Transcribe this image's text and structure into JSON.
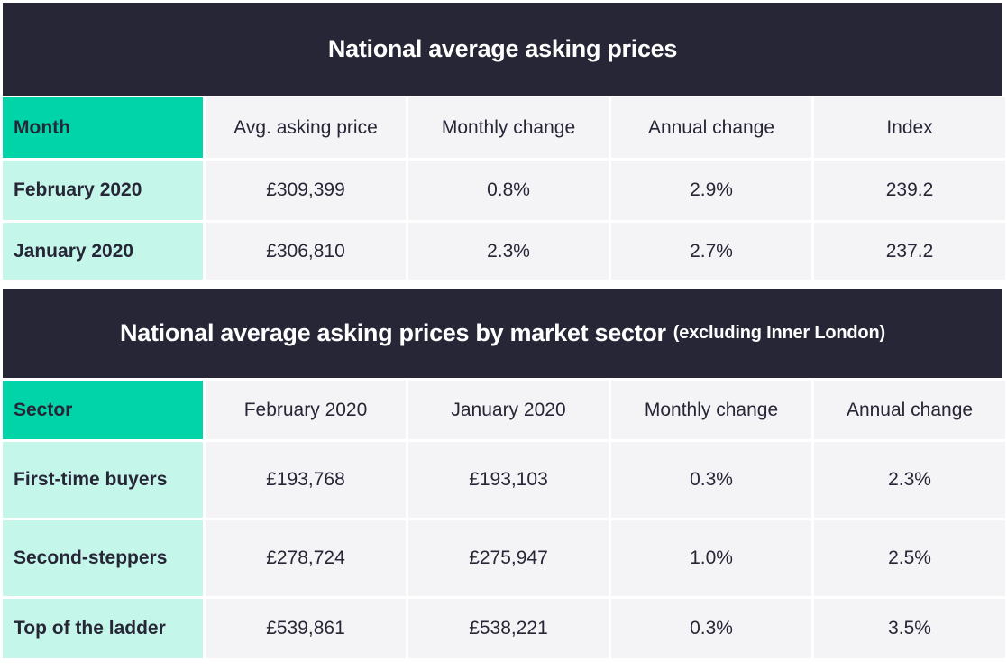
{
  "table1": {
    "title": "National average asking prices",
    "headers": [
      "Month",
      "Avg. asking price",
      "Monthly change",
      "Annual change",
      "Index"
    ],
    "rows": [
      [
        "February 2020",
        "£309,399",
        "0.8%",
        "2.9%",
        "239.2"
      ],
      [
        "January 2020",
        "£306,810",
        "2.3%",
        "2.7%",
        "237.2"
      ]
    ]
  },
  "table2": {
    "title": "National average asking prices by market sector",
    "title_suffix": "(excluding Inner London)",
    "headers": [
      "Sector",
      "February 2020",
      "January 2020",
      "Monthly change",
      "Annual change"
    ],
    "rows": [
      [
        "First-time buyers",
        "£193,768",
        "£193,103",
        "0.3%",
        "2.3%"
      ],
      [
        "Second-steppers",
        "£278,724",
        "£275,947",
        "1.0%",
        "2.5%"
      ],
      [
        "Top of the ladder",
        "£539,861",
        "£538,221",
        "0.3%",
        "3.5%"
      ]
    ]
  },
  "colors": {
    "title_bg": "#262637",
    "corner_header": "#00d4a8",
    "row_label_bg": "#c5f6ea",
    "cell_bg": "#f4f4f6"
  }
}
